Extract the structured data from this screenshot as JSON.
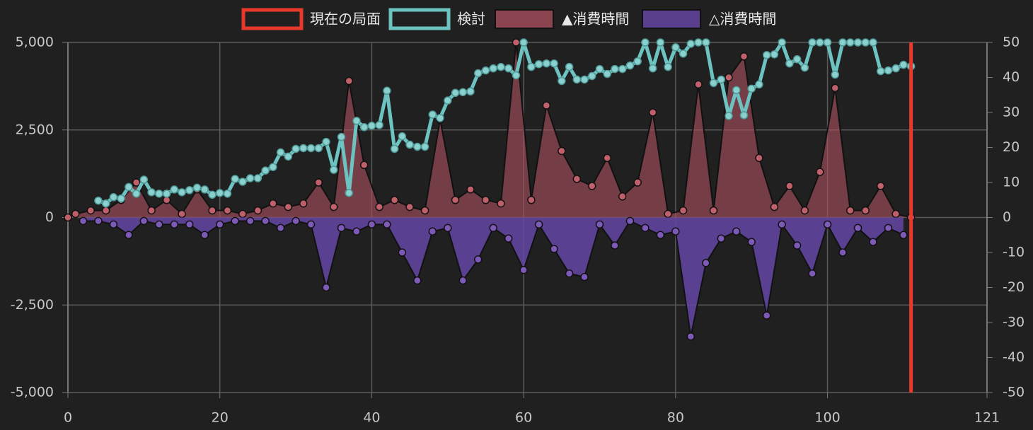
{
  "chart_data": {
    "type": "line-area",
    "xlim": [
      0,
      121
    ],
    "xticks": [
      0,
      20,
      40,
      60,
      80,
      100,
      121
    ],
    "ylim": [
      -5000,
      5000
    ],
    "yticks": [
      {
        "value": -5000,
        "label": "-5,000"
      },
      {
        "value": -2500,
        "label": "-2,500"
      },
      0,
      {
        "value": 2500,
        "label": "2,500"
      },
      {
        "value": 5000,
        "label": "5,000"
      }
    ],
    "y2lim": [
      -50,
      50
    ],
    "y2ticks": [
      -50,
      -40,
      -30,
      -20,
      -10,
      0,
      10,
      20,
      30,
      40,
      50
    ],
    "grid": true,
    "series": [
      {
        "name": "現在の局面",
        "kind": "vline",
        "color": "#e8392a",
        "x": [
          111
        ]
      },
      {
        "name": "検討",
        "kind": "line",
        "color": "#6cc3c1",
        "x": [
          4,
          5,
          6,
          7,
          8,
          9,
          10,
          11,
          12,
          13,
          14,
          15,
          16,
          17,
          18,
          19,
          20,
          21,
          22,
          23,
          24,
          25,
          26,
          27,
          28,
          29,
          30,
          31,
          32,
          33,
          34,
          35,
          36,
          37,
          38,
          39,
          40,
          41,
          42,
          43,
          44,
          45,
          46,
          47,
          48,
          49,
          50,
          51,
          52,
          53,
          54,
          55,
          56,
          57,
          58,
          59,
          60,
          61,
          62,
          63,
          64,
          65,
          66,
          67,
          68,
          69,
          70,
          71,
          72,
          73,
          74,
          75,
          76,
          77,
          78,
          79,
          80,
          81,
          82,
          83,
          84,
          85,
          86,
          87,
          88,
          89,
          90,
          91,
          92,
          93,
          94,
          95,
          96,
          97,
          98,
          99,
          100,
          101,
          102,
          103,
          104,
          105,
          106,
          107,
          108,
          109,
          110,
          111
        ],
        "values": [
          480,
          400,
          580,
          540,
          870,
          680,
          1080,
          720,
          680,
          680,
          800,
          720,
          780,
          850,
          800,
          650,
          700,
          680,
          1100,
          1020,
          1120,
          1120,
          1340,
          1440,
          1860,
          1740,
          1960,
          1980,
          1980,
          1980,
          2160,
          1360,
          2300,
          700,
          2760,
          2580,
          2620,
          2640,
          3620,
          1960,
          2320,
          2080,
          2020,
          2020,
          2940,
          2840,
          3340,
          3560,
          3580,
          3600,
          4120,
          4200,
          4260,
          4300,
          4260,
          4060,
          5000,
          4300,
          4380,
          4400,
          4400,
          3900,
          4300,
          3940,
          3940,
          4040,
          4240,
          4100,
          4240,
          4240,
          4340,
          4460,
          5000,
          4260,
          5000,
          4300,
          4860,
          4680,
          4960,
          5000,
          5000,
          3840,
          3940,
          2900,
          3640,
          2920,
          3680,
          3800,
          4640,
          4660,
          5000,
          4400,
          4520,
          4280,
          5000,
          5000,
          5000,
          4080,
          5000,
          5000,
          5000,
          5000,
          5000,
          4180,
          4200,
          4260,
          4360,
          4320
        ]
      },
      {
        "name": "▲消費時間",
        "kind": "area",
        "axis": "y2",
        "color": "#8b4550",
        "fill": "rgba(170,80,95,0.62)",
        "dot": "#c0606a",
        "x": [
          0,
          1,
          3,
          5,
          7,
          9,
          11,
          13,
          15,
          17,
          19,
          21,
          23,
          25,
          27,
          29,
          31,
          33,
          35,
          37,
          39,
          41,
          43,
          45,
          47,
          49,
          51,
          53,
          55,
          57,
          59,
          61,
          63,
          65,
          67,
          69,
          71,
          73,
          75,
          77,
          79,
          81,
          83,
          85,
          87,
          89,
          91,
          93,
          95,
          97,
          99,
          101,
          103,
          105,
          107,
          109,
          111
        ],
        "values": [
          0,
          1,
          2,
          2,
          5,
          10,
          2,
          5,
          1,
          8,
          2,
          2,
          1,
          2,
          4,
          3,
          4,
          10,
          3,
          39,
          15,
          3,
          5,
          3,
          2,
          28,
          5,
          8,
          5,
          4,
          50,
          5,
          32,
          19,
          11,
          9,
          17,
          6,
          10,
          30,
          1,
          2,
          38,
          2,
          40,
          46,
          17,
          3,
          9,
          2,
          13,
          37,
          2,
          2,
          9,
          1,
          0
        ]
      },
      {
        "name": "△消費時間",
        "kind": "area",
        "axis": "y2",
        "color": "#5a3f8f",
        "fill": "rgba(100,70,165,0.85)",
        "dot": "#7e5ab8",
        "x": [
          2,
          4,
          6,
          8,
          10,
          12,
          14,
          16,
          18,
          20,
          22,
          24,
          26,
          28,
          30,
          32,
          34,
          36,
          38,
          40,
          42,
          44,
          46,
          48,
          50,
          52,
          54,
          56,
          58,
          60,
          62,
          64,
          66,
          68,
          70,
          72,
          74,
          76,
          78,
          80,
          82,
          84,
          86,
          88,
          90,
          92,
          94,
          96,
          98,
          100,
          102,
          104,
          106,
          108,
          110
        ],
        "values": [
          -1,
          -1,
          -2,
          -5,
          -1,
          -2,
          -2,
          -2,
          -5,
          -2,
          -1,
          -1,
          -1,
          -3,
          -1,
          -2,
          -20,
          -3,
          -4,
          -2,
          -2,
          -10,
          -18,
          -4,
          -3,
          -18,
          -12,
          -3,
          -6,
          -15,
          -2,
          -9,
          -16,
          -17,
          -2,
          -8,
          -1,
          -3,
          -5,
          -4,
          -34,
          -13,
          -6,
          -4,
          -7,
          -28,
          -2,
          -8,
          -16,
          -2,
          -10,
          -3,
          -7,
          -3,
          -5
        ]
      }
    ]
  }
}
